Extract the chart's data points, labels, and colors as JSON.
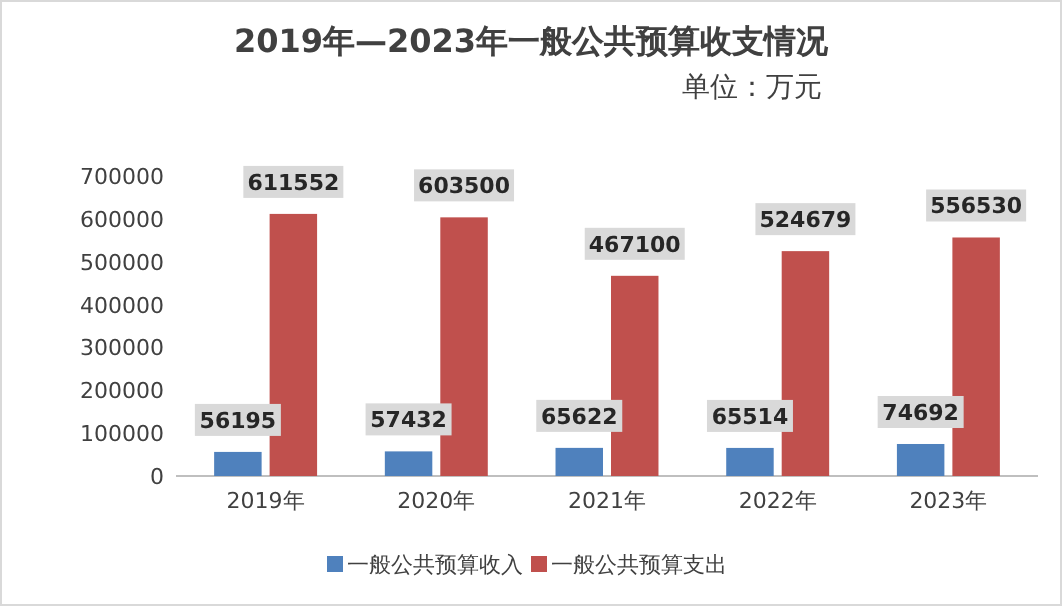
{
  "chart_data": {
    "type": "bar",
    "title": "2019年—2023年一般公共预算收支情况",
    "subtitle": "单位：万元",
    "categories": [
      "2019年",
      "2020年",
      "2021年",
      "2022年",
      "2023年"
    ],
    "series": [
      {
        "name": "一般公共预算收入",
        "color": "#4f81bd",
        "values": [
          56195,
          57432,
          65622,
          65514,
          74692
        ]
      },
      {
        "name": "一般公共预算支出",
        "color": "#c0504d",
        "values": [
          611552,
          603500,
          467100,
          524679,
          556530
        ]
      }
    ],
    "ylim": [
      0,
      700000
    ],
    "yticks": [
      0,
      100000,
      200000,
      300000,
      400000,
      500000,
      600000,
      700000
    ],
    "data_labels": true,
    "grid": false,
    "legend": "bottom"
  }
}
